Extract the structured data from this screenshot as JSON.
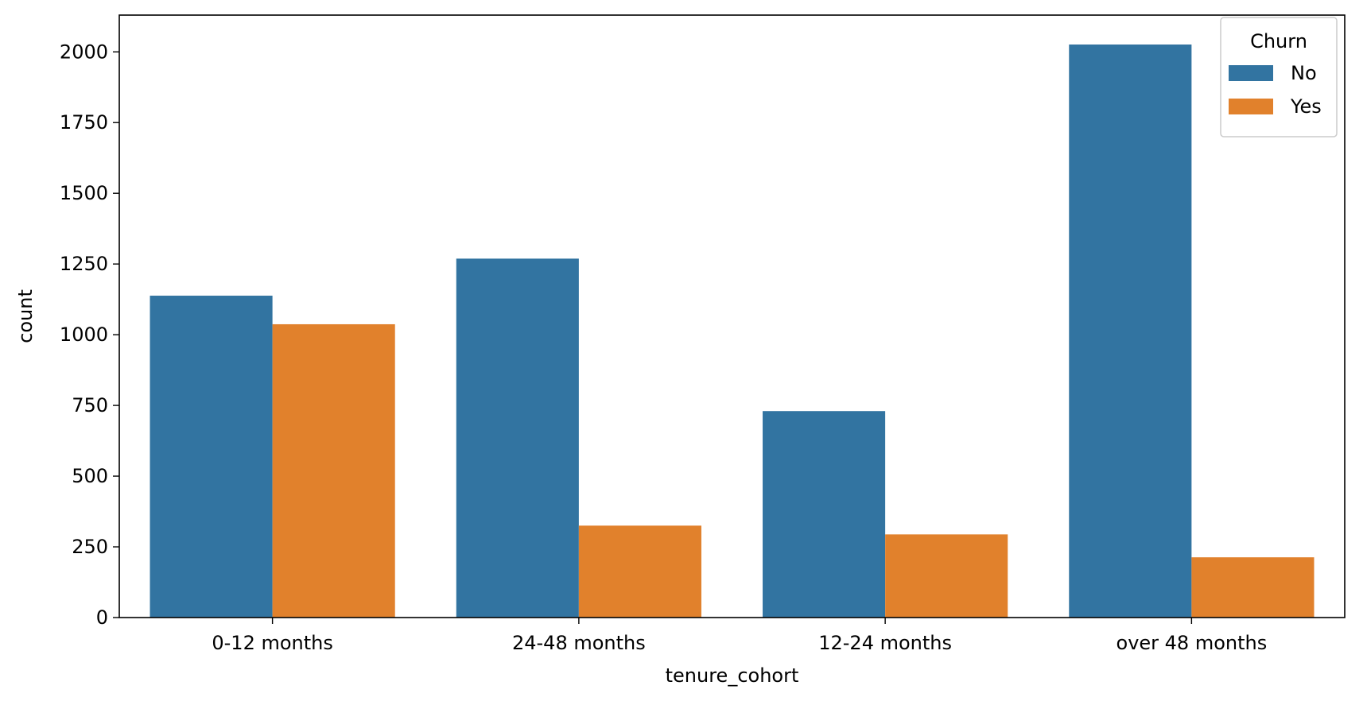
{
  "chart_data": {
    "type": "bar",
    "title": "",
    "xlabel": "tenure_cohort",
    "ylabel": "count",
    "categories": [
      "0-12 months",
      "24-48 months",
      "12-24 months",
      "over 48 months"
    ],
    "series": [
      {
        "name": "No",
        "color": "#3274a1",
        "values": [
          1138,
          1269,
          730,
          2026
        ]
      },
      {
        "name": "Yes",
        "color": "#e1812c",
        "values": [
          1037,
          325,
          294,
          213
        ]
      }
    ],
    "ylim": [
      0,
      2130
    ],
    "yticks": [
      0,
      250,
      500,
      750,
      1000,
      1250,
      1500,
      1750,
      2000
    ],
    "legend": {
      "title": "Churn",
      "placement": "top-right"
    },
    "grid": false
  }
}
